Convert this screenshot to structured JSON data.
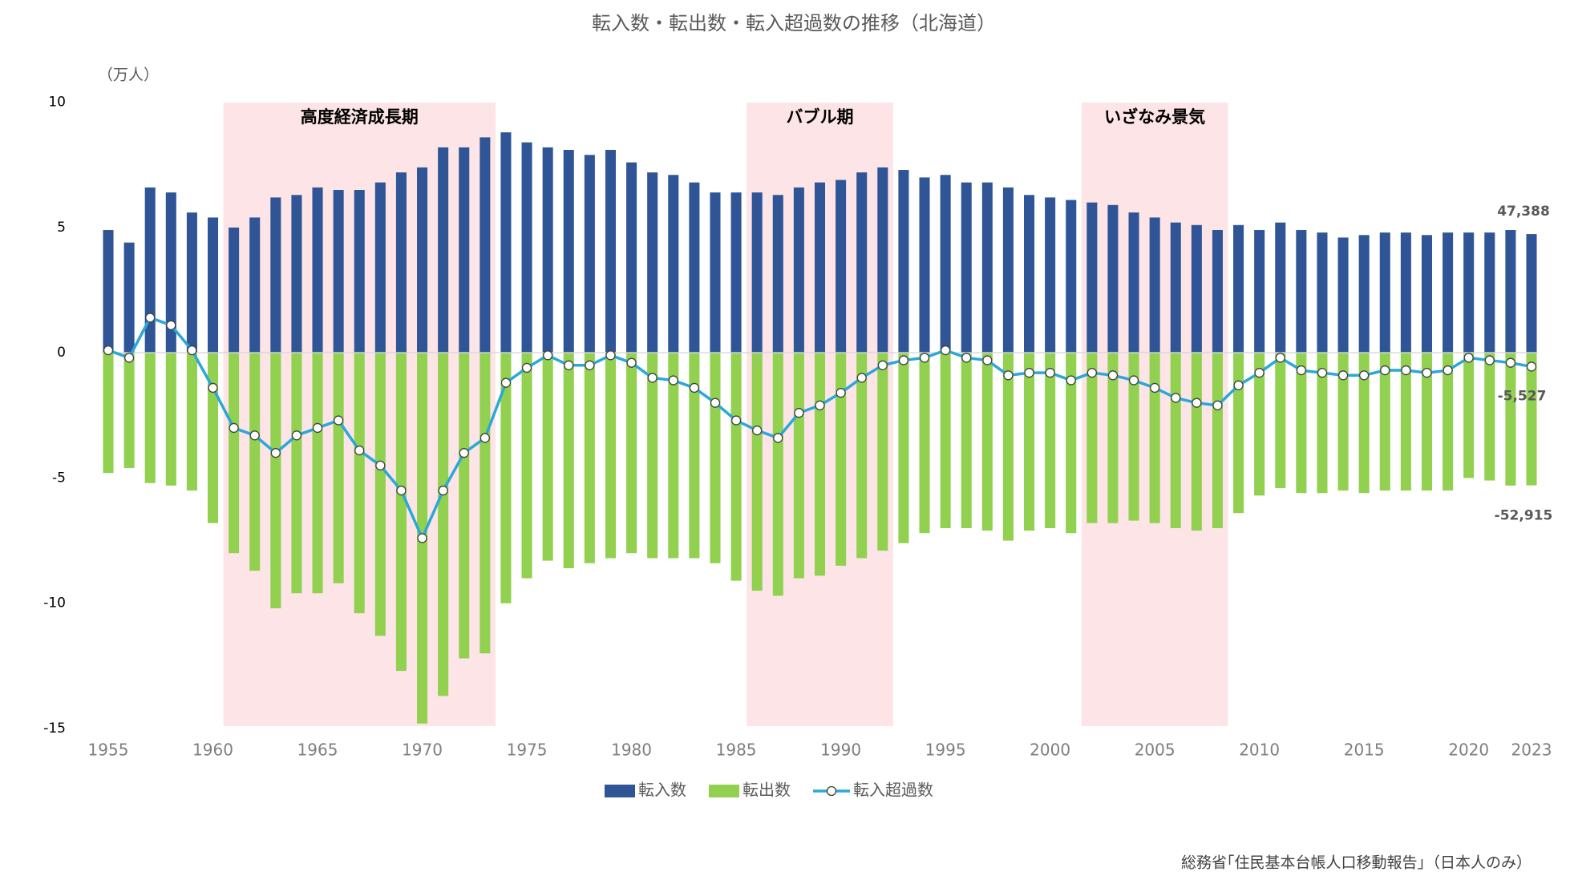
{
  "chart_data": {
    "type": "bar-line",
    "title": "転入数・転出数・転入超過数の推移（北海道）",
    "y_unit_label": "（万人）",
    "source": "総務省｢住民基本台帳人口移動報告｣（日本人のみ）",
    "x": [
      1955,
      1956,
      1957,
      1958,
      1959,
      1960,
      1961,
      1962,
      1963,
      1964,
      1965,
      1966,
      1967,
      1968,
      1969,
      1970,
      1971,
      1972,
      1973,
      1974,
      1975,
      1976,
      1977,
      1978,
      1979,
      1980,
      1981,
      1982,
      1983,
      1984,
      1985,
      1986,
      1987,
      1988,
      1989,
      1990,
      1991,
      1992,
      1993,
      1994,
      1995,
      1996,
      1997,
      1998,
      1999,
      2000,
      2001,
      2002,
      2003,
      2004,
      2005,
      2006,
      2007,
      2008,
      2009,
      2010,
      2011,
      2012,
      2013,
      2014,
      2015,
      2016,
      2017,
      2018,
      2019,
      2020,
      2021,
      2022,
      2023
    ],
    "xlim": [
      1955,
      2023
    ],
    "xticks": [
      1955,
      1960,
      1965,
      1970,
      1975,
      1980,
      1985,
      1990,
      1995,
      2000,
      2005,
      2010,
      2015,
      2020,
      2023
    ],
    "ylim": [
      -15,
      10.5
    ],
    "yticks": [
      10,
      5,
      0,
      -5,
      -10,
      -15
    ],
    "grid": false,
    "legend": "bottom",
    "periods": [
      {
        "label": "高度経済成長期",
        "start": 1961,
        "end": 1973
      },
      {
        "label": "バブル期",
        "start": 1986,
        "end": 1992
      },
      {
        "label": "いざなみ景気",
        "start": 2002,
        "end": 2008
      }
    ],
    "period_color": "#fde4e6",
    "series": [
      {
        "name": "転入数",
        "kind": "bar",
        "color": "#2f5597",
        "values": [
          4.9,
          4.4,
          6.6,
          6.4,
          5.6,
          5.4,
          5.0,
          5.4,
          6.2,
          6.3,
          6.6,
          6.5,
          6.5,
          6.8,
          7.2,
          7.4,
          8.2,
          8.2,
          8.6,
          8.8,
          8.4,
          8.2,
          8.1,
          7.9,
          8.1,
          7.6,
          7.2,
          7.1,
          6.8,
          6.4,
          6.4,
          6.4,
          6.3,
          6.6,
          6.8,
          6.9,
          7.2,
          7.4,
          7.3,
          7.0,
          7.1,
          6.8,
          6.8,
          6.6,
          6.3,
          6.2,
          6.1,
          6.0,
          5.9,
          5.6,
          5.4,
          5.2,
          5.1,
          4.9,
          5.1,
          4.9,
          5.2,
          4.9,
          4.8,
          4.6,
          4.7,
          4.8,
          4.8,
          4.7,
          4.8,
          4.8,
          4.8,
          4.9,
          4.7388
        ],
        "value_labels": [
          null,
          null,
          null,
          null,
          null,
          null,
          null,
          null,
          null,
          null,
          null,
          null,
          null,
          null,
          null,
          null,
          null,
          null,
          null,
          null,
          null,
          null,
          null,
          null,
          null,
          null,
          null,
          null,
          null,
          null,
          null,
          null,
          null,
          null,
          null,
          null,
          null,
          null,
          null,
          null,
          null,
          null,
          null,
          null,
          null,
          null,
          null,
          null,
          null,
          null,
          null,
          null,
          null,
          null,
          null,
          null,
          null,
          null,
          null,
          null,
          null,
          null,
          null,
          null,
          null,
          null,
          null,
          null,
          "47,388"
        ]
      },
      {
        "name": "転出数",
        "kind": "bar",
        "color": "#92d050",
        "values": [
          -4.8,
          -4.6,
          -5.2,
          -5.3,
          -5.5,
          -6.8,
          -8.0,
          -8.7,
          -10.2,
          -9.6,
          -9.6,
          -9.2,
          -10.4,
          -11.3,
          -12.7,
          -14.8,
          -13.7,
          -12.2,
          -12.0,
          -10.0,
          -9.0,
          -8.3,
          -8.6,
          -8.4,
          -8.2,
          -8.0,
          -8.2,
          -8.2,
          -8.2,
          -8.4,
          -9.1,
          -9.5,
          -9.7,
          -9.0,
          -8.9,
          -8.5,
          -8.2,
          -7.9,
          -7.6,
          -7.2,
          -7.0,
          -7.0,
          -7.1,
          -7.5,
          -7.1,
          -7.0,
          -7.2,
          -6.8,
          -6.8,
          -6.7,
          -6.8,
          -7.0,
          -7.1,
          -7.0,
          -6.4,
          -5.7,
          -5.4,
          -5.6,
          -5.6,
          -5.5,
          -5.6,
          -5.5,
          -5.5,
          -5.5,
          -5.5,
          -5.0,
          -5.1,
          -5.3,
          -5.2915
        ],
        "value_labels": [
          null,
          null,
          null,
          null,
          null,
          null,
          null,
          null,
          null,
          null,
          null,
          null,
          null,
          null,
          null,
          null,
          null,
          null,
          null,
          null,
          null,
          null,
          null,
          null,
          null,
          null,
          null,
          null,
          null,
          null,
          null,
          null,
          null,
          null,
          null,
          null,
          null,
          null,
          null,
          null,
          null,
          null,
          null,
          null,
          null,
          null,
          null,
          null,
          null,
          null,
          null,
          null,
          null,
          null,
          null,
          null,
          null,
          null,
          null,
          null,
          null,
          null,
          null,
          null,
          null,
          null,
          null,
          null,
          "-52,915"
        ]
      },
      {
        "name": "転入超過数",
        "kind": "line",
        "color": "#2aa8d8",
        "values": [
          0.1,
          -0.2,
          1.4,
          1.1,
          0.1,
          -1.4,
          -3.0,
          -3.3,
          -4.0,
          -3.3,
          -3.0,
          -2.7,
          -3.9,
          -4.5,
          -5.5,
          -7.4,
          -5.5,
          -4.0,
          -3.4,
          -1.2,
          -0.6,
          -0.1,
          -0.5,
          -0.5,
          -0.1,
          -0.4,
          -1.0,
          -1.1,
          -1.4,
          -2.0,
          -2.7,
          -3.1,
          -3.4,
          -2.4,
          -2.1,
          -1.6,
          -1.0,
          -0.5,
          -0.3,
          -0.2,
          0.1,
          -0.2,
          -0.3,
          -0.9,
          -0.8,
          -0.8,
          -1.1,
          -0.8,
          -0.9,
          -1.1,
          -1.4,
          -1.8,
          -2.0,
          -2.1,
          -1.3,
          -0.8,
          -0.2,
          -0.7,
          -0.8,
          -0.9,
          -0.9,
          -0.7,
          -0.7,
          -0.8,
          -0.7,
          -0.2,
          -0.3,
          -0.4,
          -0.5527
        ],
        "value_labels": [
          null,
          null,
          null,
          null,
          null,
          null,
          null,
          null,
          null,
          null,
          null,
          null,
          null,
          null,
          null,
          null,
          null,
          null,
          null,
          null,
          null,
          null,
          null,
          null,
          null,
          null,
          null,
          null,
          null,
          null,
          null,
          null,
          null,
          null,
          null,
          null,
          null,
          null,
          null,
          null,
          null,
          null,
          null,
          null,
          null,
          null,
          null,
          null,
          null,
          null,
          null,
          null,
          null,
          null,
          null,
          null,
          null,
          null,
          null,
          null,
          null,
          null,
          null,
          null,
          null,
          null,
          null,
          null,
          "-5,527"
        ]
      }
    ]
  }
}
